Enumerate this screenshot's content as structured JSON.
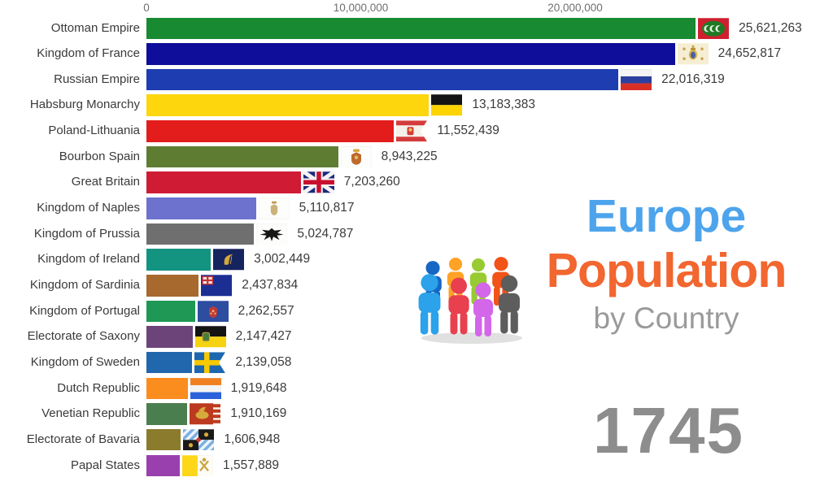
{
  "chart_data": {
    "type": "bar",
    "orientation": "horizontal",
    "title": "Europe Population by Country",
    "year": "1745",
    "xlabel": "Population",
    "x_ticks": [
      {
        "label": "0",
        "value": 0
      },
      {
        "label": "10,000,000",
        "value": 10000000
      },
      {
        "label": "20,000,000",
        "value": 20000000
      }
    ],
    "xlim": [
      0,
      32000000
    ],
    "grid": false,
    "categories": [
      "Ottoman Empire",
      "Kingdom of France",
      "Russian Empire",
      "Habsburg Monarchy",
      "Poland-Lithuania",
      "Bourbon Spain",
      "Great Britain",
      "Kingdom of Naples",
      "Kingdom of Prussia",
      "Kingdom of Ireland",
      "Kingdom of Sardinia",
      "Kingdom of Portugal",
      "Electorate of Saxony",
      "Kingdom of Sweden",
      "Dutch Republic",
      "Venetian Republic",
      "Electorate of Bavaria",
      "Papal States"
    ],
    "values": [
      25621263,
      24652817,
      22016319,
      13183383,
      11552439,
      8943225,
      7203260,
      5110817,
      5024787,
      3002449,
      2437834,
      2262557,
      2147427,
      2139058,
      1919648,
      1910169,
      1606948,
      1557889
    ]
  },
  "rows": [
    {
      "label": "Ottoman Empire",
      "value": 25621263,
      "value_label": "25,621,263",
      "color": "#188a31",
      "flag": "ottoman"
    },
    {
      "label": "Kingdom of France",
      "value": 24652817,
      "value_label": "24,652,817",
      "color": "#0e0e9a",
      "flag": "france"
    },
    {
      "label": "Russian Empire",
      "value": 22016319,
      "value_label": "22,016,319",
      "color": "#1d3db0",
      "flag": "russia"
    },
    {
      "label": "Habsburg Monarchy",
      "value": 13183383,
      "value_label": "13,183,383",
      "color": "#fdd60e",
      "flag": "habsburg"
    },
    {
      "label": "Poland-Lithuania",
      "value": 11552439,
      "value_label": "11,552,439",
      "color": "#e31c1c",
      "flag": "poland"
    },
    {
      "label": "Bourbon Spain",
      "value": 8943225,
      "value_label": "8,943,225",
      "color": "#5e7d33",
      "flag": "spain"
    },
    {
      "label": "Great Britain",
      "value": 7203260,
      "value_label": "7,203,260",
      "color": "#d01b35",
      "flag": "greatbritain"
    },
    {
      "label": "Kingdom of Naples",
      "value": 5110817,
      "value_label": "5,110,817",
      "color": "#6c72ce",
      "flag": "naples"
    },
    {
      "label": "Kingdom of Prussia",
      "value": 5024787,
      "value_label": "5,024,787",
      "color": "#6f6f6f",
      "flag": "prussia"
    },
    {
      "label": "Kingdom of Ireland",
      "value": 3002449,
      "value_label": "3,002,449",
      "color": "#139481",
      "flag": "ireland"
    },
    {
      "label": "Kingdom of Sardinia",
      "value": 2437834,
      "value_label": "2,437,834",
      "color": "#a7692d",
      "flag": "sardinia"
    },
    {
      "label": "Kingdom of Portugal",
      "value": 2262557,
      "value_label": "2,262,557",
      "color": "#1f9855",
      "flag": "portugal"
    },
    {
      "label": "Electorate of Saxony",
      "value": 2147427,
      "value_label": "2,147,427",
      "color": "#6d4479",
      "flag": "saxony"
    },
    {
      "label": "Kingdom of Sweden",
      "value": 2139058,
      "value_label": "2,139,058",
      "color": "#2167ad",
      "flag": "sweden"
    },
    {
      "label": "Dutch Republic",
      "value": 1919648,
      "value_label": "1,919,648",
      "color": "#fb8c1e",
      "flag": "dutch"
    },
    {
      "label": "Venetian Republic",
      "value": 1910169,
      "value_label": "1,910,169",
      "color": "#4b7e4e",
      "flag": "venice"
    },
    {
      "label": "Electorate of Bavaria",
      "value": 1606948,
      "value_label": "1,606,948",
      "color": "#8b7b2d",
      "flag": "bavaria"
    },
    {
      "label": "Papal States",
      "value": 1557889,
      "value_label": "1,557,889",
      "color": "#9a3fae",
      "flag": "papal"
    }
  ],
  "title": {
    "line1": "Europe",
    "line2": "Population",
    "line3": "by Country",
    "line1_color": "#4da4ec",
    "line2_color": "#f2662f",
    "line3_color": "#9a9a9a"
  },
  "year": {
    "value": "1745",
    "color": "#8d8d8d"
  },
  "branding": {
    "people_colors": [
      "#ffa226",
      "#97cb31",
      "#f25318",
      "#1667c5",
      "#2ba2ea",
      "#e8404e",
      "#d466ea",
      "#5d5d5d"
    ],
    "shadow_color": "#d8d8d8"
  },
  "axis_color": "#6f6f6f"
}
